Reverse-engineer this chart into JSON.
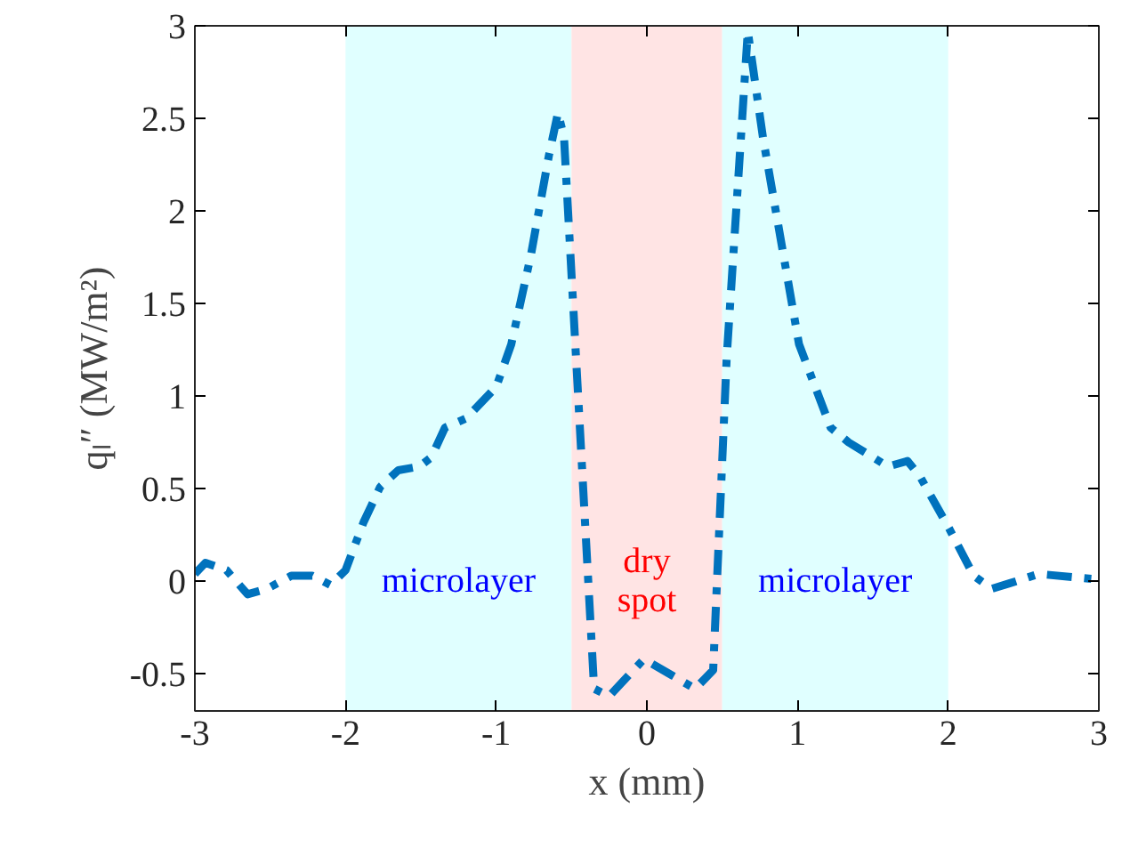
{
  "chart_data": {
    "type": "line",
    "xlabel": "x (mm)",
    "ylabel": "qₗ″ (MW/m²)",
    "x": [
      -3.0,
      -2.93,
      -2.79,
      -2.65,
      -2.52,
      -2.36,
      -2.22,
      -2.1,
      -2.0,
      -1.88,
      -1.77,
      -1.65,
      -1.51,
      -1.43,
      -1.34,
      -1.2,
      -1.0,
      -0.9,
      -0.77,
      -0.65,
      -0.59,
      -0.55,
      -0.35,
      -0.25,
      -0.02,
      0.32,
      0.44,
      0.53,
      0.67,
      0.77,
      1.01,
      1.22,
      1.34,
      1.6,
      1.73,
      1.81,
      2.01,
      2.17,
      2.29,
      2.41,
      2.6,
      3.0
    ],
    "series": [
      {
        "color": "#0072bd",
        "values": [
          0.04,
          0.1,
          0.06,
          -0.07,
          -0.04,
          0.03,
          0.03,
          -0.02,
          0.06,
          0.32,
          0.51,
          0.6,
          0.62,
          0.67,
          0.83,
          0.88,
          1.05,
          1.28,
          1.76,
          2.3,
          2.53,
          2.4,
          -0.58,
          -0.62,
          -0.42,
          -0.58,
          -0.48,
          1.21,
          2.97,
          2.4,
          1.28,
          0.83,
          0.75,
          0.62,
          0.65,
          0.57,
          0.28,
          0.03,
          -0.04,
          -0.01,
          0.04,
          0.01
        ]
      }
    ],
    "xlim": [
      -3,
      3
    ],
    "ylim": [
      -0.7,
      3
    ],
    "xticks": [
      -3,
      -2,
      -1,
      0,
      1,
      2,
      3
    ],
    "yticks": [
      -0.5,
      0,
      0.5,
      1,
      1.5,
      2,
      2.5,
      3
    ],
    "bands": [
      {
        "axis": "x",
        "from": -2,
        "to": -0.5,
        "label": "microlayer",
        "color": "#e0ffff"
      },
      {
        "axis": "x",
        "from": -0.5,
        "to": 0.5,
        "label": "dry\nspot",
        "color": "#ffe4e4"
      },
      {
        "axis": "x",
        "from": 0.5,
        "to": 2,
        "label": "microlayer",
        "color": "#e0ffff"
      }
    ],
    "grid": false,
    "marker": "none",
    "line_style": "dashed"
  }
}
